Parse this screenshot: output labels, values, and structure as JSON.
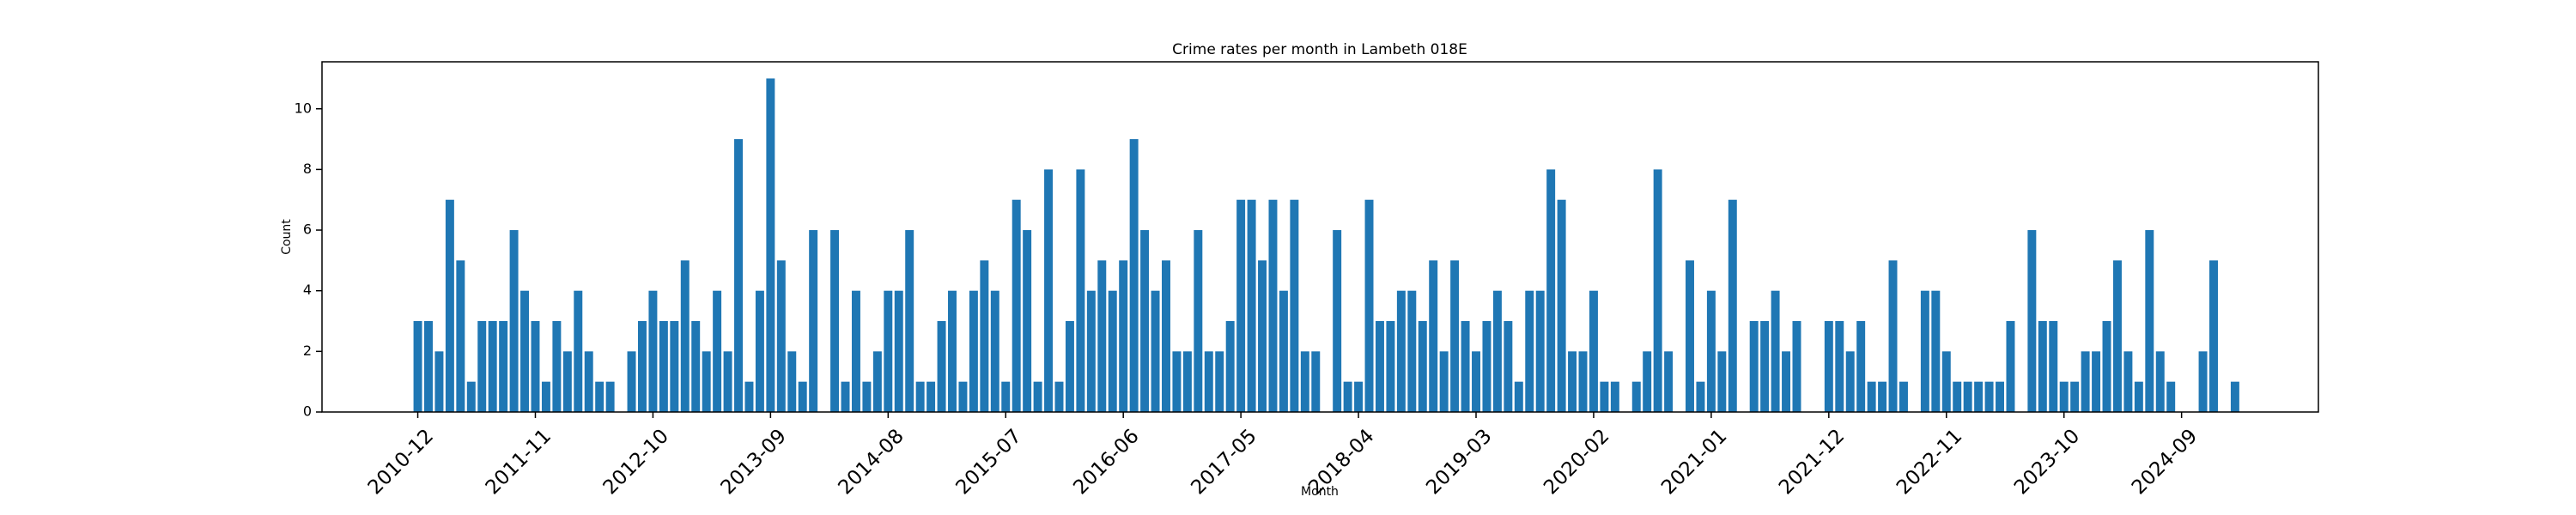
{
  "chart_data": {
    "type": "bar",
    "title": "Crime rates per month in Lambeth 018E",
    "x_label": "Month",
    "y_label": "Count",
    "categories": [
      "2010-12",
      null,
      null,
      null,
      null,
      null,
      null,
      null,
      null,
      null,
      null,
      "2011-11",
      null,
      null,
      null,
      null,
      null,
      null,
      null,
      null,
      null,
      null,
      "2012-10",
      null,
      null,
      null,
      null,
      null,
      null,
      null,
      null,
      null,
      null,
      "2013-09",
      null,
      null,
      null,
      null,
      null,
      null,
      null,
      null,
      null,
      null,
      "2014-08",
      null,
      null,
      null,
      null,
      null,
      null,
      null,
      null,
      null,
      null,
      "2015-07",
      null,
      null,
      null,
      null,
      null,
      null,
      null,
      null,
      null,
      null,
      "2016-06",
      null,
      null,
      null,
      null,
      null,
      null,
      null,
      null,
      null,
      null,
      "2017-05",
      null,
      null,
      null,
      null,
      null,
      null,
      null,
      null,
      null,
      null,
      "2018-04",
      null,
      null,
      null,
      null,
      null,
      null,
      null,
      null,
      null,
      null,
      "2019-03",
      null,
      null,
      null,
      null,
      null,
      null,
      null,
      null,
      null,
      null,
      "2020-02",
      null,
      null,
      null,
      null,
      null,
      null,
      null,
      null,
      null,
      null,
      "2021-01",
      null,
      null,
      null,
      null,
      null,
      null,
      null,
      null,
      null,
      null,
      "2021-12",
      null,
      null,
      null,
      null,
      null,
      null,
      null,
      null,
      null,
      null,
      "2022-11",
      null,
      null,
      null,
      null,
      null,
      null,
      null,
      null,
      null,
      null,
      "2023-10",
      null,
      null,
      null,
      null,
      null,
      null,
      null,
      null,
      null,
      null,
      "2024-09",
      null,
      null,
      null,
      null,
      null
    ],
    "values": [
      3,
      3,
      2,
      7,
      5,
      1,
      3,
      3,
      3,
      6,
      4,
      3,
      1,
      3,
      2,
      4,
      2,
      1,
      1,
      0,
      2,
      3,
      4,
      3,
      3,
      5,
      3,
      2,
      4,
      2,
      9,
      1,
      4,
      11,
      5,
      2,
      1,
      6,
      0,
      6,
      1,
      4,
      1,
      2,
      4,
      4,
      6,
      1,
      1,
      3,
      4,
      1,
      4,
      5,
      4,
      1,
      7,
      6,
      1,
      8,
      1,
      3,
      8,
      4,
      5,
      4,
      5,
      9,
      6,
      4,
      5,
      2,
      2,
      6,
      2,
      2,
      3,
      7,
      7,
      5,
      7,
      4,
      7,
      2,
      2,
      0,
      6,
      1,
      1,
      7,
      3,
      3,
      4,
      4,
      3,
      5,
      2,
      5,
      3,
      2,
      3,
      4,
      3,
      1,
      4,
      4,
      8,
      7,
      2,
      2,
      4,
      1,
      1,
      0,
      1,
      2,
      8,
      2,
      0,
      5,
      1,
      4,
      2,
      7,
      0,
      3,
      3,
      4,
      2,
      3,
      0,
      0,
      3,
      3,
      2,
      3,
      1,
      1,
      5,
      1,
      0,
      4,
      4,
      2,
      1,
      1,
      1,
      1,
      1,
      3,
      0,
      6,
      3,
      3,
      1,
      1,
      2,
      2,
      3,
      5,
      2,
      1,
      6,
      2,
      1,
      0,
      0,
      2,
      5,
      0,
      1
    ],
    "color": "#1f77b4",
    "ylim": [
      0,
      11.55
    ],
    "yticks": [
      0,
      2,
      4,
      6,
      8,
      10
    ],
    "grid": false
  }
}
